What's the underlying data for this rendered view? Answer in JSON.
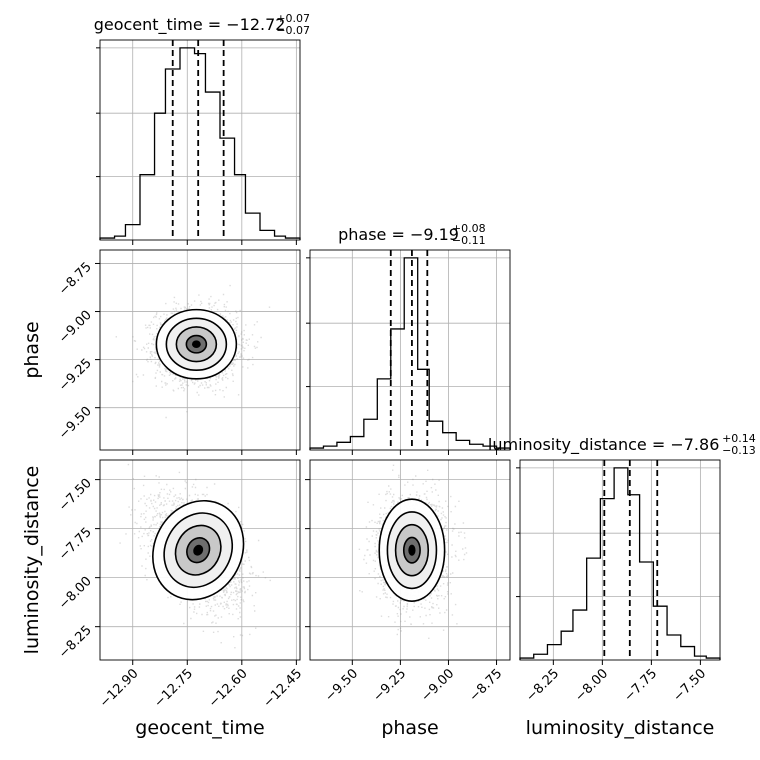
{
  "chart_data": {
    "type": "corner",
    "grid": true,
    "parameters": [
      {
        "name": "geocent_time",
        "title_label": "geocent_time = −12.72",
        "title_sup": "+0.07",
        "title_sub": "−0.07",
        "range": [
          -12.99,
          -12.44
        ],
        "ticks": [
          -12.9,
          -12.75,
          -12.6,
          -12.45
        ],
        "tick_labels": [
          "−12.90",
          "−12.75",
          "−12.60",
          "−12.45"
        ],
        "quantiles": [
          -12.79,
          -12.72,
          -12.65
        ],
        "hist_edges": [
          -12.99,
          -12.95,
          -12.92,
          -12.88,
          -12.84,
          -12.81,
          -12.77,
          -12.73,
          -12.7,
          -12.66,
          -12.62,
          -12.59,
          -12.55,
          -12.51,
          -12.48,
          -12.44
        ],
        "hist_counts": [
          1,
          2,
          8,
          34,
          66,
          89,
          100,
          97,
          77,
          53,
          34,
          14,
          5,
          2,
          1
        ]
      },
      {
        "name": "phase",
        "title_label": "phase = −9.19",
        "title_sup": "+0.08",
        "title_sub": "−0.11",
        "range": [
          -9.72,
          -8.68
        ],
        "ticks": [
          -9.5,
          -9.25,
          -9.0,
          -8.75
        ],
        "tick_labels": [
          "−9.50",
          "−9.25",
          "−9.00",
          "−8.75"
        ],
        "quantiles": [
          -9.3,
          -9.19,
          -9.11
        ],
        "hist_edges": [
          -9.72,
          -9.65,
          -9.58,
          -9.51,
          -9.44,
          -9.37,
          -9.3,
          -9.23,
          -9.16,
          -9.1,
          -9.03,
          -8.96,
          -8.89,
          -8.82,
          -8.75,
          -8.68
        ],
        "hist_counts": [
          1,
          2,
          4,
          7,
          16,
          37,
          63,
          100,
          42,
          15,
          9,
          5,
          3,
          2,
          1
        ]
      },
      {
        "name": "luminosity_distance",
        "title_label": "luminosity_distance = −7.86",
        "title_sup": "+0.14",
        "title_sub": "−0.13",
        "range": [
          -8.42,
          -7.4
        ],
        "ticks": [
          -8.25,
          -8.0,
          -7.75,
          -7.5
        ],
        "tick_labels": [
          "−8.25",
          "−8.00",
          "−7.75",
          "−7.50"
        ],
        "quantiles": [
          -7.99,
          -7.86,
          -7.72
        ],
        "hist_edges": [
          -8.42,
          -8.35,
          -8.28,
          -8.21,
          -8.15,
          -8.08,
          -8.01,
          -7.94,
          -7.87,
          -7.81,
          -7.74,
          -7.67,
          -7.6,
          -7.53,
          -7.47,
          -7.4
        ],
        "hist_counts": [
          1,
          3,
          8,
          15,
          26,
          53,
          84,
          100,
          86,
          51,
          28,
          13,
          7,
          2,
          1
        ]
      }
    ],
    "pairs": [
      {
        "x": 0,
        "y": 1,
        "mean": [
          -12.725,
          -9.17
        ],
        "sd": [
          0.055,
          0.09
        ],
        "rho": 0.0
      },
      {
        "x": 0,
        "y": 2,
        "mean": [
          -12.72,
          -7.86
        ],
        "sd": [
          0.06,
          0.13
        ],
        "rho": -0.45
      },
      {
        "x": 1,
        "y": 2,
        "mean": [
          -9.19,
          -7.86
        ],
        "sd": [
          0.085,
          0.13
        ],
        "rho": 0.0
      }
    ]
  }
}
